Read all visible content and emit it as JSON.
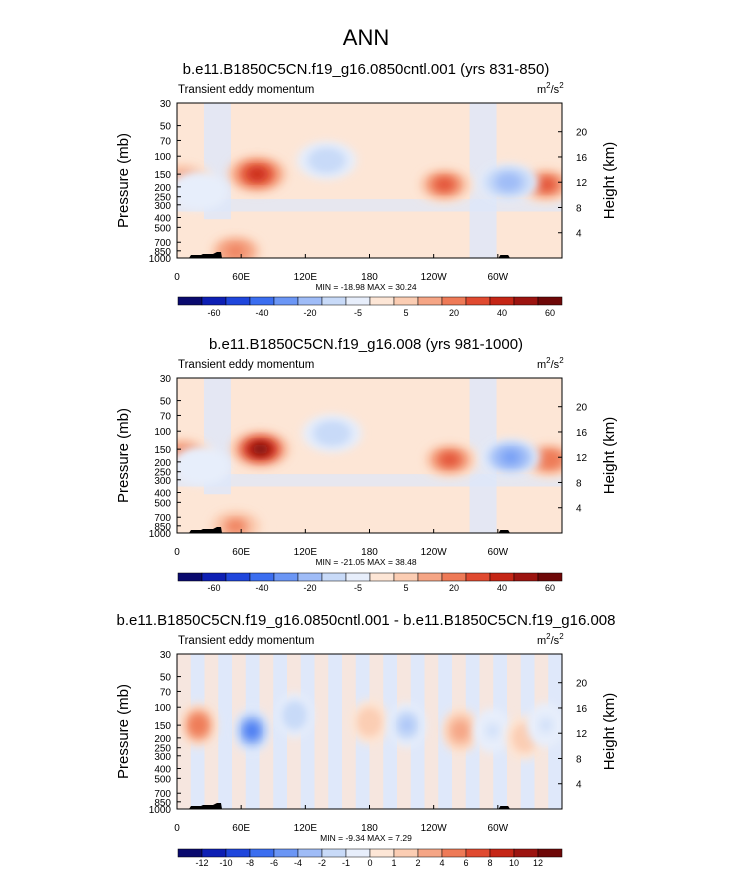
{
  "figure": {
    "title": "ANN"
  },
  "colors": {
    "cmap_levels_colors": [
      "#0a0a6e",
      "#0d1fb4",
      "#1f46dc",
      "#3b6ef0",
      "#6b96f5",
      "#9fbcf7",
      "#c8daf8",
      "#e7eefb",
      "#fde6d6",
      "#fbcdb3",
      "#f5a585",
      "#ee7a57",
      "#e04a30",
      "#c52616",
      "#9c1410",
      "#6e0808"
    ],
    "topography": "#000000"
  },
  "chart_data": [
    {
      "type": "heatmap",
      "title": "b.e11.B1850C5CN.f19_g16.0850cntl.001 (yrs 831-850)",
      "left_label": "Transient eddy momentum",
      "units": {
        "base": "m",
        "exp": "2",
        "sep": "/s",
        "exp2": "2"
      },
      "ylabel": "Pressure (mb)",
      "ylabel_right": "Height (km)",
      "yticks": [
        "30",
        "50",
        "70",
        "100",
        "150",
        "200",
        "250",
        "300",
        "400",
        "500",
        "700",
        "850",
        "1000"
      ],
      "yticks_right": [
        "20",
        "16",
        "12",
        "8",
        "4"
      ],
      "xticks": [
        "0",
        "60E",
        "120E",
        "180",
        "120W",
        "60W"
      ],
      "stats": "MIN = -18.98  MAX = 30.24",
      "colorbar_labels": [
        "-60",
        "-40",
        "-20",
        "-5",
        "5",
        "20",
        "40",
        "60"
      ],
      "features": [
        {
          "lon": 75,
          "p": 150,
          "value": 30
        },
        {
          "lon": 5,
          "p": 170,
          "value": 15
        },
        {
          "lon": 250,
          "p": 190,
          "value": 25
        },
        {
          "lon": 345,
          "p": 190,
          "value": 22
        },
        {
          "lon": 140,
          "p": 110,
          "value": -10
        },
        {
          "lon": 310,
          "p": 180,
          "value": -16
        },
        {
          "lon": 20,
          "p": 220,
          "value": -5
        },
        {
          "lon": 55,
          "p": 860,
          "value": 18
        }
      ]
    },
    {
      "type": "heatmap",
      "title": "b.e11.B1850C5CN.f19_g16.008 (yrs 981-1000)",
      "left_label": "Transient eddy momentum",
      "units": {
        "base": "m",
        "exp": "2",
        "sep": "/s",
        "exp2": "2"
      },
      "ylabel": "Pressure (mb)",
      "ylabel_right": "Height (km)",
      "yticks": [
        "30",
        "50",
        "70",
        "100",
        "150",
        "200",
        "250",
        "300",
        "400",
        "500",
        "700",
        "850",
        "1000"
      ],
      "yticks_right": [
        "20",
        "16",
        "12",
        "8",
        "4"
      ],
      "xticks": [
        "0",
        "60E",
        "120E",
        "180",
        "120W",
        "60W"
      ],
      "stats": "MIN = -21.05  MAX = 38.48",
      "colorbar_labels": [
        "-60",
        "-40",
        "-20",
        "-5",
        "5",
        "20",
        "40",
        "60"
      ],
      "features": [
        {
          "lon": 78,
          "p": 150,
          "value": 38
        },
        {
          "lon": 5,
          "p": 170,
          "value": 18
        },
        {
          "lon": 255,
          "p": 190,
          "value": 22
        },
        {
          "lon": 348,
          "p": 190,
          "value": 20
        },
        {
          "lon": 145,
          "p": 105,
          "value": -9
        },
        {
          "lon": 312,
          "p": 180,
          "value": -18
        },
        {
          "lon": 22,
          "p": 220,
          "value": -5
        },
        {
          "lon": 55,
          "p": 860,
          "value": 16
        }
      ]
    },
    {
      "type": "heatmap",
      "title": "b.e11.B1850C5CN.f19_g16.0850cntl.001 - b.e11.B1850C5CN.f19_g16.008",
      "left_label": "Transient eddy momentum",
      "units": {
        "base": "m",
        "exp": "2",
        "sep": "/s",
        "exp2": "2"
      },
      "ylabel": "Pressure (mb)",
      "ylabel_right": "Height (km)",
      "yticks": [
        "30",
        "50",
        "70",
        "100",
        "150",
        "200",
        "250",
        "300",
        "400",
        "500",
        "700",
        "850",
        "1000"
      ],
      "yticks_right": [
        "20",
        "16",
        "12",
        "8",
        "4"
      ],
      "xticks": [
        "0",
        "60E",
        "120E",
        "180",
        "120W",
        "60W"
      ],
      "stats": "MIN = -9.34  MAX =  7.29",
      "colorbar_labels": [
        "-12",
        "-10",
        "-8",
        "-6",
        "-4",
        "-2",
        "-1",
        "0",
        "1",
        "2",
        "4",
        "6",
        "8",
        "10",
        "12"
      ],
      "features": [
        {
          "lon": 20,
          "p": 150,
          "value": 6
        },
        {
          "lon": 70,
          "p": 170,
          "value": -8
        },
        {
          "lon": 110,
          "p": 120,
          "value": -3
        },
        {
          "lon": 180,
          "p": 140,
          "value": 3
        },
        {
          "lon": 215,
          "p": 150,
          "value": -4
        },
        {
          "lon": 265,
          "p": 170,
          "value": 4
        },
        {
          "lon": 295,
          "p": 170,
          "value": -2
        },
        {
          "lon": 325,
          "p": 200,
          "value": 3
        },
        {
          "lon": 345,
          "p": 150,
          "value": -2
        }
      ]
    }
  ]
}
